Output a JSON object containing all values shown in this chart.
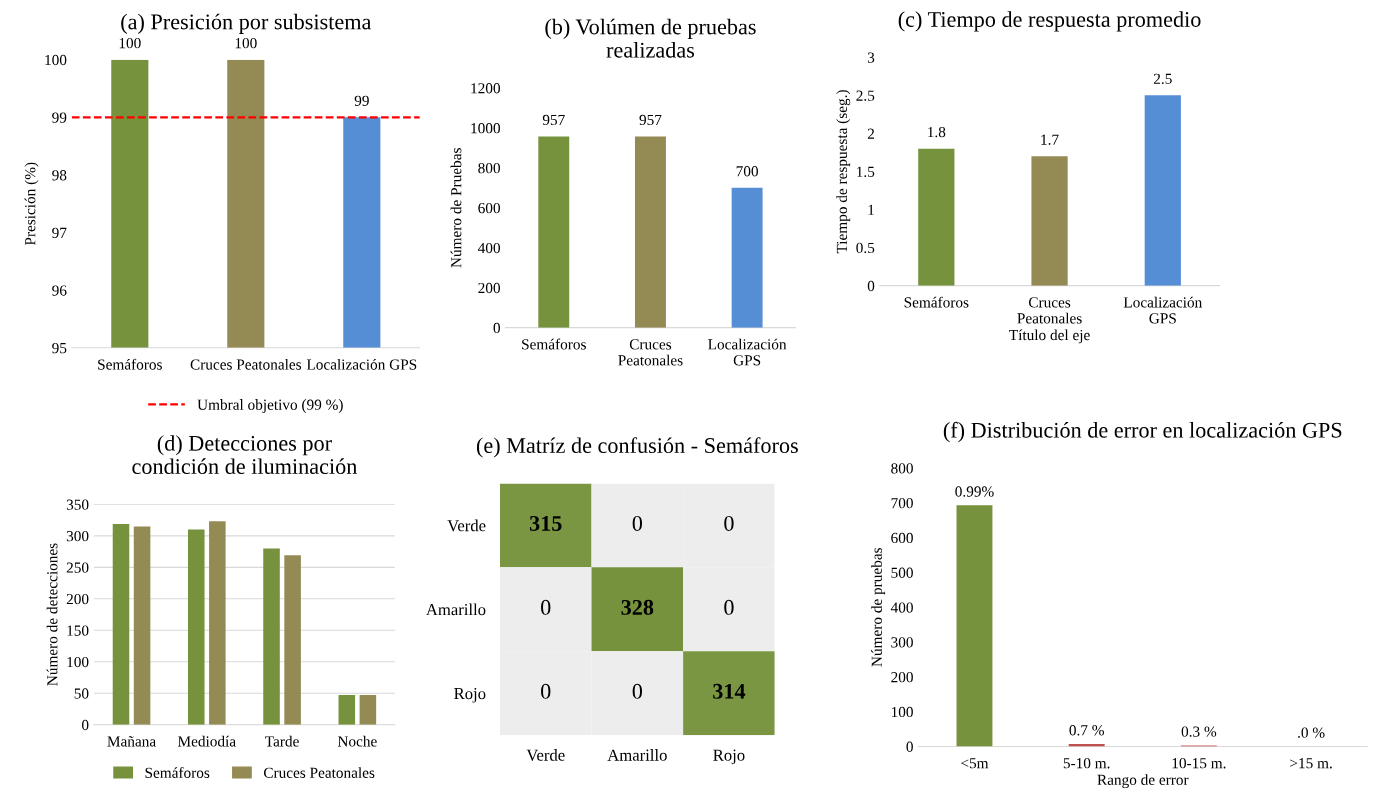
{
  "chart_data": [
    {
      "type": "bar",
      "title": "(a) Presición por subsistema",
      "ylabel": "Presición (%)",
      "categories": [
        "Semáforos",
        "Cruces Peatonales",
        "Localización GPS"
      ],
      "values": [
        100,
        100,
        99
      ],
      "colors": [
        "#76923c",
        "#948a54",
        "#558ed5"
      ],
      "ylim": [
        95,
        100
      ],
      "yticks": [
        95,
        96,
        97,
        98,
        99,
        100
      ],
      "data_labels": true,
      "grid": false,
      "legend": "bottom",
      "ref_lines": [
        {
          "axis": "y",
          "value": 99,
          "label": "Umbral objetivo (99 %)",
          "color": "#ff0000",
          "line_style": "dashed"
        }
      ]
    },
    {
      "type": "bar",
      "title": "(b) Volúmen de pruebas realizadas",
      "ylabel": "Número de Pruebas",
      "categories": [
        "Semáforos",
        "Cruces Peatonales",
        "Localización GPS"
      ],
      "values": [
        957,
        957,
        700
      ],
      "colors": [
        "#76923c",
        "#948a54",
        "#558ed5"
      ],
      "ylim": [
        0,
        1200
      ],
      "yticks": [
        0,
        200,
        400,
        600,
        800,
        1000,
        1200
      ],
      "data_labels": true,
      "grid": false
    },
    {
      "type": "bar",
      "title": "(c) Tiempo de respuesta promedio",
      "ylabel": "Tiempo de respuesta (seg.)",
      "xlabel": "Título del eje",
      "categories": [
        "Semáforos",
        "Cruces Peatonales",
        "Localización GPS"
      ],
      "values": [
        1.8,
        1.7,
        2.5
      ],
      "colors": [
        "#76923c",
        "#948a54",
        "#558ed5"
      ],
      "ylim": [
        0,
        3
      ],
      "yticks": [
        0,
        0.5,
        1,
        1.5,
        2,
        2.5,
        3
      ],
      "data_labels": true,
      "grid": false
    },
    {
      "type": "bar",
      "title": "(d) Detecciones por condición de iluminación",
      "ylabel": "Número de detecciones",
      "categories": [
        "Mañana",
        "Mediodía",
        "Tarde",
        "Noche"
      ],
      "ylim": [
        0,
        350
      ],
      "yticks": [
        0,
        50,
        100,
        150,
        200,
        250,
        300,
        350
      ],
      "grid": "y",
      "legend": "bottom",
      "series": [
        {
          "name": "Semáforos",
          "color": "#76923c",
          "values": [
            319,
            310,
            280,
            47
          ]
        },
        {
          "name": "Cruces Peatonales",
          "color": "#948a54",
          "values": [
            315,
            323,
            269,
            47
          ]
        }
      ]
    },
    {
      "type": "heatmap",
      "title": "(e) Matríz de confusión - Semáforos",
      "categories": [
        "Verde",
        "Amarillo",
        "Rojo"
      ],
      "y_categories": [
        "Verde",
        "Amarillo",
        "Rojo"
      ],
      "colors": [
        "#ededed",
        "#76923c"
      ],
      "cells": [
        [
          315,
          0,
          0
        ],
        [
          0,
          328,
          0
        ],
        [
          0,
          0,
          314
        ]
      ],
      "cell_labels": [
        [
          "315",
          "0",
          "0"
        ],
        [
          "0",
          "328",
          "0"
        ],
        [
          "0",
          "0",
          "314"
        ]
      ]
    },
    {
      "type": "bar",
      "title": "(f) Distribución de error en localización GPS",
      "ylabel": "Número de pruebas",
      "xlabel": "Rango de error",
      "categories": [
        "<5m",
        "5-10 m.",
        "10-15 m.",
        ">15 m."
      ],
      "values": [
        693,
        7,
        3,
        0
      ],
      "colors": [
        "#76923c",
        "#c0504d",
        "#c0504d",
        "#c0504d"
      ],
      "ylim": [
        0,
        800
      ],
      "yticks": [
        0,
        100,
        200,
        300,
        400,
        500,
        600,
        700,
        800
      ],
      "grid": false,
      "annotations": [
        {
          "text": "0.99%",
          "x": "<5m",
          "y": 693
        },
        {
          "text": "0.7 %",
          "x": "5-10 m.",
          "y": 7
        },
        {
          "text": "0.3 %",
          "x": "10-15 m.",
          "y": 3
        },
        {
          "text": ".0 %",
          "x": ">15 m.",
          "y": 0
        }
      ]
    }
  ]
}
